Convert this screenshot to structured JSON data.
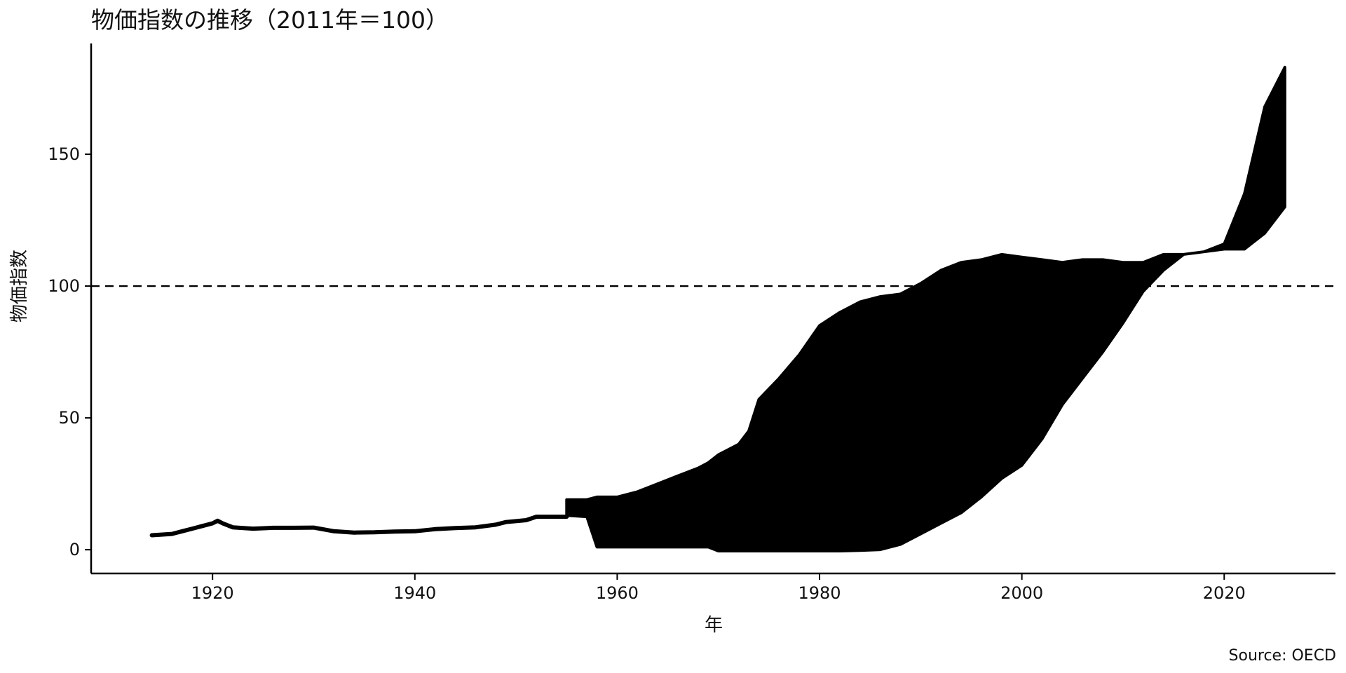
{
  "chart_data": {
    "type": "line",
    "title": "物価指数の推移（2011年＝100）",
    "xlabel": "年",
    "ylabel": "物価指数",
    "source": "Source: OECD",
    "xlim": [
      1908,
      2031
    ],
    "ylim": [
      -9,
      192
    ],
    "x_ticks": [
      1920,
      1940,
      1960,
      1980,
      2000,
      2020
    ],
    "y_ticks": [
      0,
      50,
      100,
      150
    ],
    "reference_line": {
      "y": 100,
      "style": "dashed"
    },
    "grid": false,
    "legend": "none",
    "series": [
      {
        "kind": "line",
        "x": [
          1914,
          1916,
          1917,
          1918,
          1919,
          1920,
          1920.5,
          1921,
          1922,
          1924,
          1926,
          1928,
          1930,
          1932,
          1934,
          1936,
          1938,
          1940,
          1942,
          1944,
          1946,
          1948,
          1949,
          1951,
          1952,
          1955
        ],
        "y": [
          5.5,
          6.0,
          7.0,
          8.0,
          9.0,
          10.0,
          11.0,
          10.0,
          8.5,
          8.0,
          8.3,
          8.3,
          8.4,
          7.0,
          6.5,
          6.6,
          6.9,
          7.0,
          7.8,
          8.2,
          8.5,
          9.5,
          10.5,
          11.2,
          12.5,
          12.5
        ]
      },
      {
        "kind": "band",
        "x": [
          1955,
          1957,
          1958,
          1960,
          1962,
          1964,
          1966,
          1968,
          1969,
          1970,
          1972,
          1973,
          1974,
          1976,
          1978,
          1980,
          1982,
          1984,
          1986,
          1988,
          1990,
          1992,
          1994,
          1996,
          1998,
          2000,
          2002,
          2004,
          2006,
          2008,
          2010,
          2012,
          2014,
          2016,
          2018,
          2020,
          2022,
          2024,
          2026
        ],
        "y_high": [
          19,
          19,
          20,
          20,
          22,
          25,
          28,
          31,
          33,
          36,
          40,
          45,
          57,
          65,
          74,
          85,
          90,
          94,
          96,
          97,
          101,
          106,
          109,
          110,
          112,
          111,
          110,
          109,
          110,
          110,
          109,
          109,
          112,
          112,
          113,
          116,
          135,
          168,
          183
        ],
        "y_low": [
          13,
          12.5,
          1,
          1,
          1,
          1,
          1,
          1,
          1,
          -0.5,
          -0.5,
          -0.5,
          -0.5,
          -0.5,
          -0.5,
          -0.5,
          -0.5,
          -0.3,
          0,
          2,
          6,
          10,
          14,
          20,
          27,
          32,
          42,
          55,
          65,
          75,
          86,
          98,
          106,
          112,
          113,
          114,
          114,
          120,
          130
        ]
      }
    ]
  }
}
